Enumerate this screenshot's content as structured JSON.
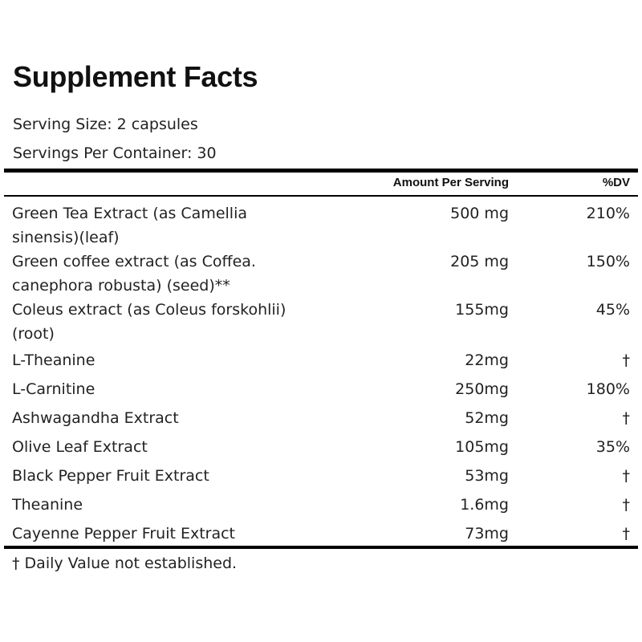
{
  "label": {
    "title": "Supplement Facts",
    "serving_size": "Serving Size: 2 capsules",
    "servings_per_container": "Servings Per Container: 30",
    "header": {
      "amount": "Amount Per Serving",
      "dv": "%DV"
    },
    "ingredients": [
      {
        "name": "Green Tea Extract (as Camellia sinensis)(leaf)",
        "amount": "500 mg",
        "dv": "210%"
      },
      {
        "name": "Green coffee extract (as Coffea. canephora robusta) (seed)**",
        "amount": "205 mg",
        "dv": "150%"
      },
      {
        "name": "Coleus extract (as Coleus forskohlii) (root)",
        "amount": "155mg",
        "dv": "45%"
      },
      {
        "name": "L-Theanine",
        "amount": "22mg",
        "dv": "†"
      },
      {
        "name": "L-Carnitine",
        "amount": "250mg",
        "dv": "180%"
      },
      {
        "name": "Ashwagandha Extract",
        "amount": "52mg",
        "dv": "†"
      },
      {
        "name": "Olive Leaf Extract",
        "amount": "105mg",
        "dv": "35%"
      },
      {
        "name": "Black Pepper Fruit Extract",
        "amount": "53mg",
        "dv": "†"
      },
      {
        "name": "Theanine",
        "amount": "1.6mg",
        "dv": "†"
      },
      {
        "name": "Cayenne Pepper Fruit Extract",
        "amount": "73mg",
        "dv": "†"
      }
    ],
    "footnote": "† Daily Value not established."
  }
}
